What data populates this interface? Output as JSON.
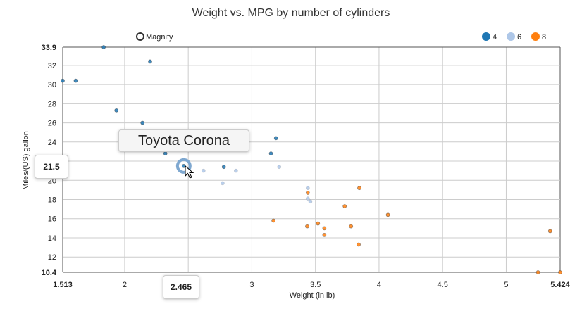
{
  "chart_data": {
    "type": "scatter",
    "title": "Weight vs. MPG by number of cylinders",
    "xlabel": "Weight (in lb)",
    "ylabel": "Miles/(US) gallon",
    "xlim": [
      1.513,
      5.424
    ],
    "ylim": [
      10.4,
      33.9
    ],
    "x_ticks": [
      "1.513",
      "2",
      "2.5",
      "3",
      "3.5",
      "4",
      "4.5",
      "5",
      "5.424"
    ],
    "y_ticks": [
      "10.4",
      "12",
      "14",
      "16",
      "18",
      "20",
      "22",
      "24",
      "26",
      "28",
      "30",
      "32",
      "33.9"
    ],
    "x_tick_values": [
      1.513,
      2,
      2.5,
      3,
      3.5,
      4,
      4.5,
      5,
      5.424
    ],
    "y_tick_values": [
      10.4,
      12,
      14,
      16,
      18,
      20,
      22,
      24,
      26,
      28,
      30,
      32,
      33.9
    ],
    "grid": true,
    "legend_position": "top-right",
    "series": [
      {
        "name": "4",
        "color": "#1f77b4",
        "points": [
          {
            "x": 2.32,
            "y": 22.8
          },
          {
            "x": 3.19,
            "y": 24.4
          },
          {
            "x": 3.15,
            "y": 22.8
          },
          {
            "x": 2.2,
            "y": 32.4
          },
          {
            "x": 1.615,
            "y": 30.4
          },
          {
            "x": 1.835,
            "y": 33.9
          },
          {
            "x": 2.465,
            "y": 21.5
          },
          {
            "x": 1.935,
            "y": 27.3
          },
          {
            "x": 2.14,
            "y": 26.0
          },
          {
            "x": 1.513,
            "y": 30.4
          },
          {
            "x": 2.78,
            "y": 21.4
          }
        ]
      },
      {
        "name": "6",
        "color": "#aec7e8",
        "points": [
          {
            "x": 2.62,
            "y": 21.0
          },
          {
            "x": 2.875,
            "y": 21.0
          },
          {
            "x": 3.215,
            "y": 21.4
          },
          {
            "x": 3.44,
            "y": 18.1
          },
          {
            "x": 3.44,
            "y": 19.2
          },
          {
            "x": 3.46,
            "y": 17.8
          },
          {
            "x": 2.77,
            "y": 19.7
          }
        ]
      },
      {
        "name": "8",
        "color": "#ff7f0e",
        "points": [
          {
            "x": 3.44,
            "y": 18.7
          },
          {
            "x": 3.57,
            "y": 14.3
          },
          {
            "x": 4.07,
            "y": 16.4
          },
          {
            "x": 3.73,
            "y": 17.3
          },
          {
            "x": 3.78,
            "y": 15.2
          },
          {
            "x": 5.25,
            "y": 10.4
          },
          {
            "x": 5.424,
            "y": 10.4
          },
          {
            "x": 5.345,
            "y": 14.7
          },
          {
            "x": 3.52,
            "y": 15.5
          },
          {
            "x": 3.435,
            "y": 15.2
          },
          {
            "x": 3.84,
            "y": 13.3
          },
          {
            "x": 3.845,
            "y": 19.2
          },
          {
            "x": 3.17,
            "y": 15.8
          },
          {
            "x": 3.57,
            "y": 15.0
          }
        ]
      }
    ],
    "highlight": {
      "label": "Toyota Corona",
      "x": 2.465,
      "y": 21.5,
      "x_readout": "2.465",
      "y_readout": "21.5"
    }
  },
  "magnify": {
    "label": "Magnify"
  }
}
